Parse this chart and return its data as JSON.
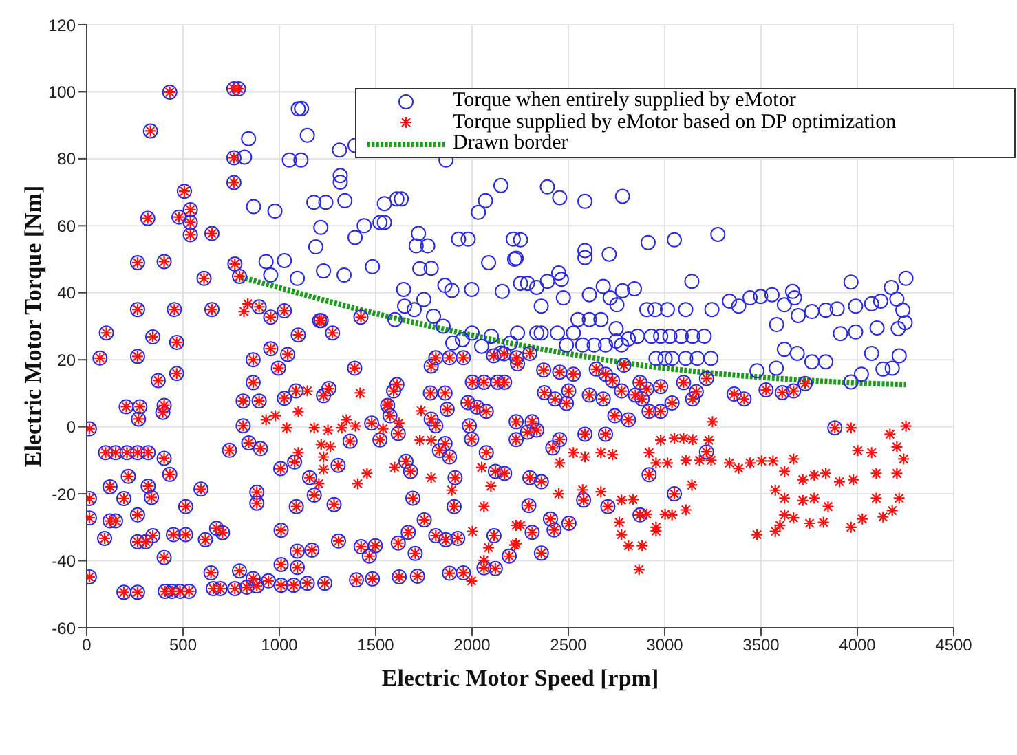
{
  "chart_data": {
    "type": "scatter",
    "xlabel": "Electric Motor Speed [rpm]",
    "ylabel": "Electric Motor Torque [Nm]",
    "xlim": [
      0,
      4500
    ],
    "ylim": [
      -60,
      120
    ],
    "xticks": [
      0,
      500,
      1000,
      1500,
      2000,
      2500,
      3000,
      3500,
      4000,
      4500
    ],
    "yticks": [
      -60,
      -40,
      -20,
      0,
      20,
      40,
      60,
      80,
      100,
      120
    ],
    "grid": true,
    "legend": "top right",
    "series": [
      {
        "name": "Torque when entirely supplied by eMotor",
        "marker": "circle",
        "color": "#2a2ae0",
        "x": [
          1098,
          1115,
          1145,
          840,
          819,
          1052,
          1112,
          866,
          977,
          1179,
          1241,
          1312,
          1316,
          1316,
          1340,
          1215,
          1189,
          1393,
          1440,
          1522,
          1545,
          1545,
          1610,
          1633,
          1722,
          1710,
          1770,
          1393,
          1865,
          2150,
          2070,
          2033,
          1930,
          1980,
          2214,
          931,
          955,
          1026,
          1093,
          1229,
          1336,
          1483,
          1729,
          1788,
          1645,
          1859,
          1895,
          1998,
          2086,
          2229,
          2157,
          2391,
          2455,
          2586,
          2781,
          2252,
          2221,
          2586,
          2586,
          2712,
          2914,
          3050,
          3276,
          2252,
          2288,
          2336,
          2391,
          2450,
          2464,
          2474,
          2359,
          2609,
          2681,
          2717,
          2781,
          2843,
          2752,
          3141,
          2907,
          2950,
          3014,
          3109,
          3245,
          3336,
          3384,
          3443,
          3498,
          3557,
          3621,
          3664,
          3674,
          3693,
          3764,
          3836,
          3895,
          3967,
          3991,
          4074,
          4121,
          4176,
          4252,
          4205,
          4236,
          4248,
          4212,
          4102,
          3912,
          3991,
          3581,
          3621,
          3688,
          3764,
          3836,
          4074,
          4217,
          4133,
          4181,
          4021,
          3967,
          3479,
          3579,
          2236,
          2336,
          2359,
          2443,
          2526,
          2550,
          2609,
          2669,
          2748,
          2812,
          2748,
          2859,
          2931,
          2979,
          3027,
          3086,
          3145,
          3205,
          2955,
          3002,
          3038,
          3109,
          3169,
          3240,
          2490,
          2574,
          2634,
          2693,
          2776,
          1850,
          1900,
          1950,
          2000,
          2050,
          2100,
          2150,
          2200,
          1700,
          1750,
          1650,
          1600,
          1800,
          431,
          331,
          764,
          788,
          764,
          764,
          507,
          317,
          479,
          538,
          538,
          538,
          650,
          264,
          402,
          609,
          769,
          793,
          264,
          455,
          650,
          895,
          1026,
          955,
          1209,
          1423,
          102,
          343,
          467,
          69,
          264,
          467,
          371,
          205,
          276,
          269,
          402,
          395,
          14,
          98,
          150,
          209,
          264,
          319,
          402,
          216,
          431,
          121,
          319,
          193,
          336,
          14,
          14,
          121,
          150,
          264,
          593,
          514,
          93,
          264,
          307,
          343,
          450,
          514,
          616,
          674,
          705,
          402,
          14,
          193,
          264,
          407,
          443,
          484,
          531,
          645,
          793,
          864,
          657,
          693,
          769,
          831,
          883,
          943,
          1009,
          1074,
          1145,
          1236,
          1009,
          1093,
          1009,
          1093,
          1169,
          1307,
          1424,
          1498,
          1467,
          1400,
          1483,
          1622,
          1717,
          1669,
          1617,
          1705,
          1752,
          1812,
          1864,
          1926,
          1883,
          1955,
          2062,
          2121,
          2114,
          2193,
          812,
          895,
          1026,
          1086,
          1229,
          1257,
          955,
          1043,
          1098,
          1217,
          1276,
          1391,
          995,
          864,
          864,
          812,
          741,
          841,
          902,
          1007,
          1079,
          1157,
          1181,
          1284,
          1305,
          1367,
          883,
          883,
          1088,
          1479,
          1522,
          1617,
          1610,
          1593,
          1562,
          1574,
          1657,
          1681,
          1693,
          1784,
          1860,
          1871,
          1788,
          1812,
          1860,
          1831,
          1883,
          1912,
          1907,
          1812,
          1883,
          1955,
          1788,
          2002,
          2062,
          2133,
          2169,
          1979,
          2026,
          2074,
          1986,
          1998,
          2074,
          2121,
          2169,
          2112,
          2167,
          2231,
          2236,
          2300,
          2372,
          2455,
          2526,
          2645,
          2693,
          2729,
          2788,
          2872,
          2907,
          2979,
          3098,
          3217,
          2776,
          2848,
          2883,
          2919,
          2979,
          3038,
          3145,
          3164,
          3360,
          3412,
          3526,
          3610,
          3669,
          3729,
          2376,
          2431,
          2502,
          2490,
          2609,
          2681,
          2741,
          2812,
          2229,
          2312,
          2336,
          2229,
          2288,
          2455,
          2419,
          2586,
          2693,
          2300,
          2360,
          2295,
          2407,
          2426,
          2312,
          2360,
          2503,
          2579,
          2705,
          2919,
          3050,
          3217,
          3883,
          2872
        ],
        "values": [
          94.9,
          95,
          87,
          86,
          80.5,
          79.6,
          79.6,
          65.7,
          64.4,
          67,
          67,
          82.6,
          75,
          73,
          67.5,
          59.5,
          53.7,
          56.5,
          60,
          61,
          61,
          66.6,
          68,
          68,
          57.7,
          54,
          54,
          84,
          79.6,
          72,
          67.5,
          64,
          56,
          56,
          56,
          49.3,
          45.3,
          49.6,
          44.3,
          46.5,
          45.3,
          47.8,
          47.2,
          47.3,
          41,
          42.2,
          40.7,
          41,
          49,
          50.3,
          40.4,
          71.6,
          68.4,
          67.3,
          68.8,
          55.8,
          50,
          52.6,
          50.5,
          51.5,
          55,
          55.8,
          57.4,
          42.8,
          42.8,
          41.6,
          43.4,
          45.9,
          44,
          38.5,
          36,
          39.4,
          41.9,
          38.5,
          40.6,
          41.2,
          36.4,
          43.4,
          35,
          35,
          35,
          35,
          35,
          37.5,
          36,
          38.5,
          38.9,
          39.4,
          36.4,
          40.4,
          38.5,
          33.2,
          34.4,
          34.8,
          35.2,
          43.2,
          36,
          36.7,
          37.5,
          41.6,
          44.3,
          38.1,
          34.8,
          31.1,
          29.3,
          29.5,
          27.8,
          28.3,
          30.5,
          23.1,
          21.9,
          19.4,
          19.4,
          21.9,
          21.2,
          17.2,
          17.5,
          15.7,
          13.4,
          16.7,
          17.5,
          28,
          28,
          28,
          28,
          28,
          32,
          32,
          32,
          29.3,
          26.2,
          25.6,
          27,
          27,
          27,
          27,
          27,
          27,
          27,
          20.4,
          20.4,
          20.4,
          20.4,
          20.4,
          20.4,
          24.4,
          24.4,
          24.4,
          24.4,
          24.4,
          30,
          25,
          26,
          28,
          24,
          27,
          22,
          25,
          35,
          38,
          36,
          32,
          33,
          99.9,
          88.3,
          100.9,
          100.9,
          80.3,
          72.9,
          70.3,
          62.2,
          62.6,
          64.8,
          61,
          57.3,
          57.7,
          49,
          49.3,
          44.3,
          48.6,
          44.9,
          35,
          35,
          35,
          35.8,
          34.6,
          32.7,
          31.7,
          32.7,
          28,
          26.8,
          25.2,
          20.5,
          21,
          15.9,
          13.8,
          6,
          6,
          2.3,
          6.4,
          4.3,
          -0.6,
          -7.7,
          -7.7,
          -7.7,
          -7.7,
          -7.7,
          -9.4,
          -14.8,
          -14.2,
          -17.9,
          -17.7,
          -21.4,
          -21.1,
          -21.4,
          -27.2,
          -28.1,
          -28.1,
          -26.3,
          -18.6,
          -23.8,
          -33.3,
          -34.3,
          -34.3,
          -32.5,
          -32.2,
          -32.2,
          -33.7,
          -30.3,
          -31.6,
          -39,
          -44.8,
          -49.4,
          -49.4,
          -49.1,
          -49.1,
          -49.1,
          -49.1,
          -43.6,
          -43,
          -45.3,
          -48.3,
          -48.3,
          -48.3,
          -47.9,
          -47.5,
          -46,
          -47.3,
          -47.3,
          -46.7,
          -46.7,
          -41.1,
          -42,
          -30.9,
          -37.1,
          -36.8,
          -34.1,
          -35.8,
          -35.5,
          -38.6,
          -45.7,
          -45.4,
          -44.8,
          -44.6,
          -31.5,
          -34.7,
          -37.8,
          -27.8,
          -32.5,
          -33.7,
          -33.3,
          -43.7,
          -43.6,
          -42.1,
          -42.3,
          -32.5,
          -38.6,
          7.7,
          7.7,
          8.5,
          10.7,
          9.3,
          11.4,
          23.3,
          21.6,
          27.4,
          31.7,
          28,
          17.5,
          17.5,
          20,
          13.2,
          0.3,
          -7,
          -4.8,
          -6.5,
          -12.5,
          -10.5,
          -15.2,
          -20.4,
          -23.2,
          -11.5,
          -4.3,
          -19.5,
          -22.8,
          -23.8,
          1.1,
          -3.9,
          -2,
          12.6,
          10.7,
          6.4,
          3.3,
          -10.3,
          -13.3,
          -21.3,
          10.1,
          10.1,
          5.2,
          2.3,
          0.3,
          -5,
          -7.1,
          -9,
          -15.2,
          -23.8,
          20.6,
          20.6,
          20.6,
          18.1,
          13.3,
          13.3,
          13.3,
          13.3,
          7.2,
          5.9,
          4.6,
          0.3,
          -3.7,
          -7.7,
          -13.3,
          -13.9,
          21.2,
          21.8,
          20.6,
          18.8,
          21.9,
          16.9,
          16.3,
          15.7,
          17.2,
          15.7,
          13.8,
          18.4,
          13.2,
          11.3,
          12,
          13.2,
          14.4,
          10.7,
          9.5,
          8.3,
          4.6,
          4.6,
          7.1,
          8.3,
          10.5,
          9.8,
          8.3,
          11,
          10.2,
          10.7,
          12.9,
          10.2,
          8.3,
          10.7,
          7,
          9.5,
          8.3,
          3.3,
          2.1,
          1.5,
          1.5,
          -1,
          -3.8,
          -1.6,
          -3.8,
          -6.3,
          -2.2,
          -2.2,
          -15.2,
          -16.4,
          -23.5,
          -27.5,
          -30.8,
          -31.5,
          -37.7,
          -28.8,
          -21.9,
          -23.8,
          -14.3,
          -20,
          -7.5,
          -0.3,
          -26.3
        ]
      },
      {
        "name": "Torque supplied by eMotor based on DP optimization",
        "marker": "cross",
        "color": "#ff1010",
        "x": [
          431,
          331,
          764,
          788,
          764,
          764,
          507,
          317,
          479,
          538,
          538,
          538,
          650,
          264,
          402,
          609,
          769,
          793,
          264,
          455,
          650,
          895,
          1026,
          955,
          1209,
          1423,
          102,
          343,
          467,
          69,
          264,
          467,
          371,
          205,
          276,
          269,
          402,
          395,
          14,
          98,
          150,
          209,
          264,
          319,
          402,
          216,
          431,
          121,
          319,
          193,
          336,
          14,
          14,
          121,
          150,
          264,
          593,
          514,
          93,
          264,
          307,
          343,
          450,
          514,
          616,
          674,
          705,
          402,
          14,
          193,
          264,
          407,
          443,
          484,
          531,
          645,
          793,
          864,
          657,
          693,
          769,
          831,
          883,
          943,
          1009,
          1074,
          1145,
          1236,
          1009,
          1093,
          1009,
          1093,
          1169,
          1307,
          1424,
          1498,
          1467,
          1400,
          1483,
          1622,
          1717,
          1669,
          1617,
          1705,
          1752,
          1812,
          1864,
          1926,
          1883,
          1955,
          2062,
          2121,
          2114,
          2193,
          812,
          895,
          1026,
          1086,
          1229,
          1257,
          955,
          1043,
          1098,
          1217,
          1276,
          1391,
          995,
          864,
          864,
          812,
          741,
          841,
          902,
          1007,
          1079,
          1157,
          1181,
          1284,
          1305,
          1367,
          883,
          883,
          1088,
          1479,
          1522,
          1617,
          1610,
          1593,
          1562,
          1574,
          1657,
          1681,
          1693,
          1784,
          1860,
          1871,
          1788,
          1812,
          1860,
          1831,
          1883,
          1912,
          1907,
          1812,
          1883,
          1955,
          1788,
          2002,
          2062,
          2133,
          2169,
          1979,
          2026,
          2074,
          1986,
          1998,
          2074,
          2121,
          2169,
          2112,
          2167,
          2231,
          2236,
          2300,
          2372,
          2455,
          2526,
          2645,
          2693,
          2729,
          2788,
          2872,
          2907,
          2979,
          3098,
          3217,
          2776,
          2848,
          2883,
          2919,
          2979,
          3038,
          3145,
          3164,
          3360,
          3412,
          3526,
          3610,
          3669,
          3729,
          2376,
          2431,
          2502,
          2490,
          2609,
          2681,
          2741,
          2812,
          2229,
          2312,
          2336,
          2229,
          2288,
          2455,
          2419,
          2586,
          2693,
          2300,
          2360,
          2295,
          2407,
          2426,
          2312,
          2360,
          2503,
          2579,
          2705,
          2919,
          3050,
          3217,
          3883,
          2872,
          836,
          816,
          3248,
          2979,
          3050,
          3098,
          3145,
          3229,
          2919,
          2955,
          3014,
          3110,
          3181,
          3241,
          3336,
          3384,
          3443,
          3503,
          3562,
          3622,
          3669,
          3717,
          3776,
          3836,
          3907,
          3979,
          3967,
          4002,
          4074,
          4169,
          4205,
          4252,
          4240,
          4205,
          4098,
          4217,
          4098,
          4181,
          4133,
          4026,
          3967,
          3574,
          3622,
          3717,
          3776,
          3848,
          3622,
          3598,
          3574,
          3479,
          3669,
          3752,
          3824,
          2450,
          2574,
          2669,
          2776,
          2836,
          2764,
          2776,
          2872,
          2907,
          2955,
          3002,
          2955,
          2883,
          2812,
          2867,
          3110,
          3141,
          3038,
          2252,
          2221,
          2455,
          2526,
          2586,
          2669,
          2729,
          931,
          979,
          1038,
          1098,
          1145,
          1181,
          1252,
          1324,
          1348,
          1395,
          1217,
          1264,
          1229,
          1229,
          1098,
          1205,
          1407,
          1455,
          1419,
          1562,
          1538,
          1621,
          1736,
          1729,
          1788,
          1598,
          1788,
          1895,
          2002,
          2086,
          2062,
          1998,
          2062,
          2098,
          2050,
          2229,
          2229
        ],
        "values": [
          99.9,
          88.3,
          100.9,
          100.9,
          80.3,
          72.9,
          70.3,
          62.2,
          62.6,
          64.8,
          61,
          57.3,
          57.7,
          49,
          49.3,
          44.3,
          48.6,
          44.9,
          35,
          35,
          35,
          35.8,
          34.6,
          32.7,
          31.7,
          32.7,
          28,
          26.8,
          25.2,
          20.5,
          21,
          15.9,
          13.8,
          6,
          6,
          2.3,
          6.4,
          4.3,
          -0.6,
          -7.7,
          -7.7,
          -7.7,
          -7.7,
          -7.7,
          -9.4,
          -14.8,
          -14.2,
          -17.9,
          -17.7,
          -21.4,
          -21.1,
          -21.4,
          -27.2,
          -28.1,
          -28.1,
          -26.3,
          -18.6,
          -23.8,
          -33.3,
          -34.3,
          -34.3,
          -32.5,
          -32.2,
          -32.2,
          -33.7,
          -30.3,
          -31.6,
          -39,
          -44.8,
          -49.4,
          -49.4,
          -49.1,
          -49.1,
          -49.1,
          -49.1,
          -43.6,
          -43,
          -45.3,
          -48.3,
          -48.3,
          -48.3,
          -47.9,
          -47.5,
          -46,
          -47.3,
          -47.3,
          -46.7,
          -46.7,
          -41.1,
          -42,
          -30.9,
          -37.1,
          -36.8,
          -34.1,
          -35.8,
          -35.5,
          -38.6,
          -45.7,
          -45.4,
          -44.8,
          -44.6,
          -31.5,
          -34.7,
          -37.8,
          -27.8,
          -32.5,
          -33.7,
          -33.3,
          -43.7,
          -43.6,
          -42.1,
          -42.3,
          -32.5,
          -38.6,
          7.7,
          7.7,
          8.5,
          10.7,
          9.3,
          11.4,
          23.3,
          21.6,
          27.4,
          31.7,
          28,
          17.5,
          17.5,
          20,
          13.2,
          0.3,
          -7,
          -4.8,
          -6.5,
          -12.5,
          -10.5,
          -15.2,
          -20.4,
          -23.2,
          -11.5,
          -4.3,
          -19.5,
          -22.8,
          -23.8,
          1.1,
          -3.9,
          -2,
          12.6,
          10.7,
          6.4,
          3.3,
          -10.3,
          -13.3,
          -21.3,
          10.1,
          10.1,
          5.2,
          2.3,
          0.3,
          -5,
          -7.1,
          -9,
          -15.2,
          -23.8,
          20.6,
          20.6,
          20.6,
          18.1,
          13.3,
          13.3,
          13.3,
          13.3,
          7.2,
          5.9,
          4.6,
          0.3,
          -3.7,
          -7.7,
          -13.3,
          -13.9,
          21.2,
          21.8,
          20.6,
          18.8,
          21.9,
          16.9,
          16.3,
          15.7,
          17.2,
          15.7,
          13.8,
          18.4,
          13.2,
          11.3,
          12,
          13.2,
          14.4,
          10.7,
          9.5,
          8.3,
          4.6,
          4.6,
          7.1,
          8.3,
          10.5,
          9.8,
          8.3,
          11,
          10.2,
          10.7,
          12.9,
          10.2,
          8.3,
          10.7,
          7,
          9.5,
          8.3,
          3.3,
          2.1,
          1.5,
          1.5,
          -1,
          -3.8,
          -1.6,
          -3.8,
          -6.3,
          -2.2,
          -2.2,
          -15.2,
          -16.4,
          -23.5,
          -27.5,
          -30.8,
          -31.5,
          -37.7,
          -28.8,
          -21.9,
          -23.8,
          -14.3,
          -20,
          -7.5,
          -0.3,
          -26.3,
          36.7,
          34.4,
          1.5,
          -4,
          -3.4,
          -3.4,
          -3.8,
          -4,
          -7.7,
          -10.8,
          -10.8,
          -10,
          -10,
          -10,
          -10.8,
          -12.4,
          -10.8,
          -10.2,
          -10.2,
          -13.3,
          -9.6,
          -15.8,
          -14.5,
          -13.9,
          -16.4,
          -15.8,
          -0.3,
          -7.1,
          -7.7,
          -2.2,
          -6,
          0.2,
          -9.6,
          -13.9,
          -13.9,
          -21.3,
          -21.3,
          -25,
          -26.9,
          -27.5,
          -30,
          -18.9,
          -21.3,
          -22,
          -21.3,
          -23.8,
          -26.3,
          -29.4,
          -31.2,
          -32.2,
          -27.2,
          -28.8,
          -28.5,
          -20,
          -18.8,
          -19.4,
          -21.9,
          -21.7,
          -28.5,
          -32.2,
          -26.3,
          -26.1,
          -30,
          -26.1,
          -31.1,
          -35.5,
          -35.5,
          -42.6,
          -24.8,
          -17.4,
          -26.3,
          -29.4,
          -35.3,
          -10.8,
          -7.7,
          -9,
          -7.7,
          -8.3,
          2.1,
          3.3,
          -0.3,
          4.5,
          10.7,
          -0.3,
          -1,
          -0.3,
          2.1,
          0.2,
          -5.3,
          -5.9,
          -9,
          -12.7,
          -7.7,
          -17,
          -17,
          -13.9,
          10.1,
          6.8,
          -0.6,
          1.1,
          4.8,
          -4,
          -4,
          -12.1,
          -15.2,
          -18.9,
          -31.2,
          -36.1,
          -39.9,
          -46,
          -23.8,
          -17.7,
          -12.1,
          -29.4,
          -34.9
        ]
      },
      {
        "name": "Drawn border",
        "type": "line",
        "line_style": "dotted",
        "color": "#1e9a1e",
        "x": [
          800,
          1000,
          1250,
          1500,
          1786,
          2000,
          2193,
          2500,
          2800,
          3193,
          3500,
          3955,
          4250
        ],
        "values": [
          44.7,
          41.5,
          37.5,
          33.8,
          30,
          27.3,
          25,
          21.8,
          19,
          16.3,
          14.8,
          13.2,
          12.6
        ]
      }
    ]
  }
}
